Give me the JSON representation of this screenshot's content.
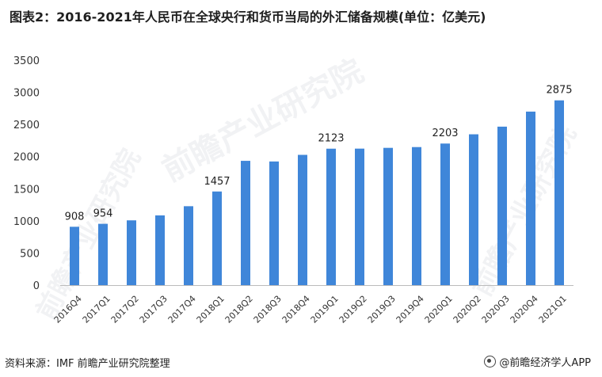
{
  "title": "图表2：2016-2021年人民币在全球央行和货币当局的外汇储备规模(单位：亿美元)",
  "source": "资料来源：IMF 前瞻产业研究院整理",
  "brand": "@前瞻经济学人APP",
  "watermark": "前瞻产业研究院",
  "bar_color": "#3f86d9",
  "chart_data": {
    "type": "bar",
    "title": "图表2：2016-2021年人民币在全球央行和货币当局的外汇储备规模(单位：亿美元)",
    "categories": [
      "2016Q4",
      "2017Q1",
      "2017Q2",
      "2017Q3",
      "2017Q4",
      "2018Q1",
      "2018Q2",
      "2018Q3",
      "2018Q4",
      "2019Q1",
      "2019Q2",
      "2019Q3",
      "2019Q4",
      "2020Q1",
      "2020Q2",
      "2020Q3",
      "2020Q4",
      "2021Q1"
    ],
    "values": [
      908,
      954,
      1008,
      1085,
      1228,
      1457,
      1934,
      1924,
      2027,
      2123,
      2124,
      2136,
      2148,
      2203,
      2347,
      2466,
      2700,
      2875
    ],
    "data_labels": [
      "908",
      "954",
      "",
      "",
      "",
      "1457",
      "",
      "",
      "",
      "2123",
      "",
      "",
      "",
      "2203",
      "",
      "",
      "",
      "2875"
    ],
    "yticks": [
      "0",
      "500",
      "1000",
      "1500",
      "2000",
      "2500",
      "3000",
      "3500"
    ],
    "ylim": [
      0,
      3500
    ],
    "grid": false,
    "legend": "none"
  }
}
